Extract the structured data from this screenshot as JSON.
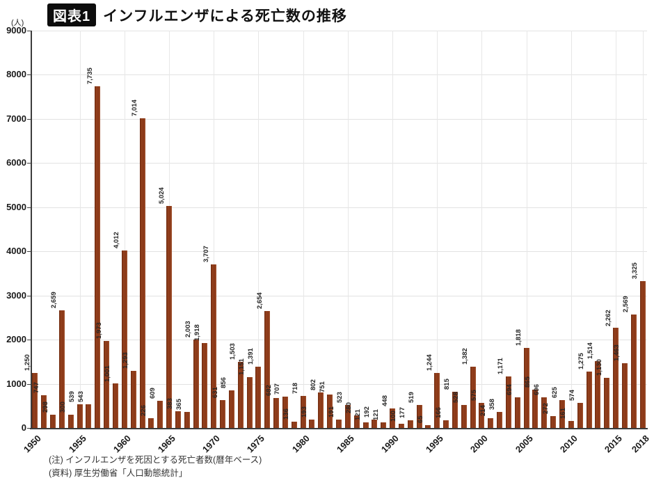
{
  "header": {
    "badge": "図表1",
    "title": "インフルエンザによる死亡数の推移"
  },
  "notes": {
    "line1": "(注) インフルエンザを死因とする死亡者数(暦年ベース)",
    "line2": "(資料) 厚生労働省「人口動態統計」"
  },
  "chart_data": {
    "type": "bar",
    "title": "インフルエンザによる死亡数の推移",
    "unit_label": "(人)",
    "xlabel": "",
    "ylabel": "(人)",
    "ylim": [
      0,
      9000
    ],
    "yticks": [
      0,
      1000,
      2000,
      3000,
      4000,
      5000,
      6000,
      7000,
      8000,
      9000
    ],
    "xticks": [
      1950,
      1955,
      1960,
      1965,
      1970,
      1975,
      1980,
      1985,
      1990,
      1995,
      2000,
      2005,
      2010,
      2015,
      2018
    ],
    "grid": "on",
    "legend": "none",
    "bar_color": "#8e3a18",
    "axis_color": "#3c3c3c",
    "grid_color": "#e2e2e2",
    "years": [
      1950,
      1951,
      1952,
      1953,
      1954,
      1955,
      1956,
      1957,
      1958,
      1959,
      1960,
      1961,
      1962,
      1963,
      1964,
      1965,
      1966,
      1967,
      1968,
      1969,
      1970,
      1971,
      1972,
      1973,
      1974,
      1975,
      1976,
      1977,
      1978,
      1979,
      1980,
      1981,
      1982,
      1983,
      1984,
      1985,
      1986,
      1987,
      1988,
      1989,
      1990,
      1991,
      1992,
      1993,
      1994,
      1995,
      1996,
      1997,
      1998,
      1999,
      2000,
      2001,
      2002,
      2003,
      2004,
      2005,
      2006,
      2007,
      2008,
      2009,
      2010,
      2011,
      2012,
      2013,
      2014,
      2015,
      2016,
      2017,
      2018
    ],
    "values": [
      1250,
      747,
      298,
      2659,
      300,
      539,
      543,
      7735,
      1973,
      1001,
      4012,
      1293,
      7014,
      226,
      609,
      5024,
      383,
      365,
      2003,
      1918,
      3707,
      631,
      856,
      1503,
      1151,
      1391,
      2654,
      682,
      707,
      136,
      718,
      193,
      802,
      751,
      191,
      523,
      280,
      121,
      192,
      121,
      448,
      100,
      177,
      519,
      65,
      1244,
      166,
      815,
      528,
      1382,
      575,
      214,
      358,
      1171,
      694,
      1818,
      865,
      696,
      272,
      625,
      161,
      574,
      1275,
      1514,
      1130,
      2262,
      1463,
      2569,
      3325
    ],
    "bar_labels": [
      "1,250",
      "747",
      "298",
      "2,659",
      "300",
      "539",
      "543",
      "7,735",
      "1,973",
      "1,001",
      "4,012",
      "1,293",
      "7,014",
      "226",
      "609",
      "5,024",
      "383",
      "365",
      "2,003",
      "1,918",
      "3,707",
      "631",
      "856",
      "1,503",
      "1,151",
      "1,391",
      "2,654",
      "682",
      "707",
      "136",
      "718",
      "193",
      "802",
      "751",
      "191",
      "523",
      "280",
      "121",
      "192",
      "121",
      "448",
      "100",
      "177",
      "519",
      "65",
      "1,244",
      "166",
      "815",
      "528",
      "1,382",
      "575",
      "214",
      "358",
      "1,171",
      "694",
      "1,818",
      "865",
      "696",
      "272",
      "625",
      "161",
      "574",
      "1,275",
      "1,514",
      "1,130",
      "2,262",
      "1,463",
      "2,569",
      "3,325"
    ]
  }
}
